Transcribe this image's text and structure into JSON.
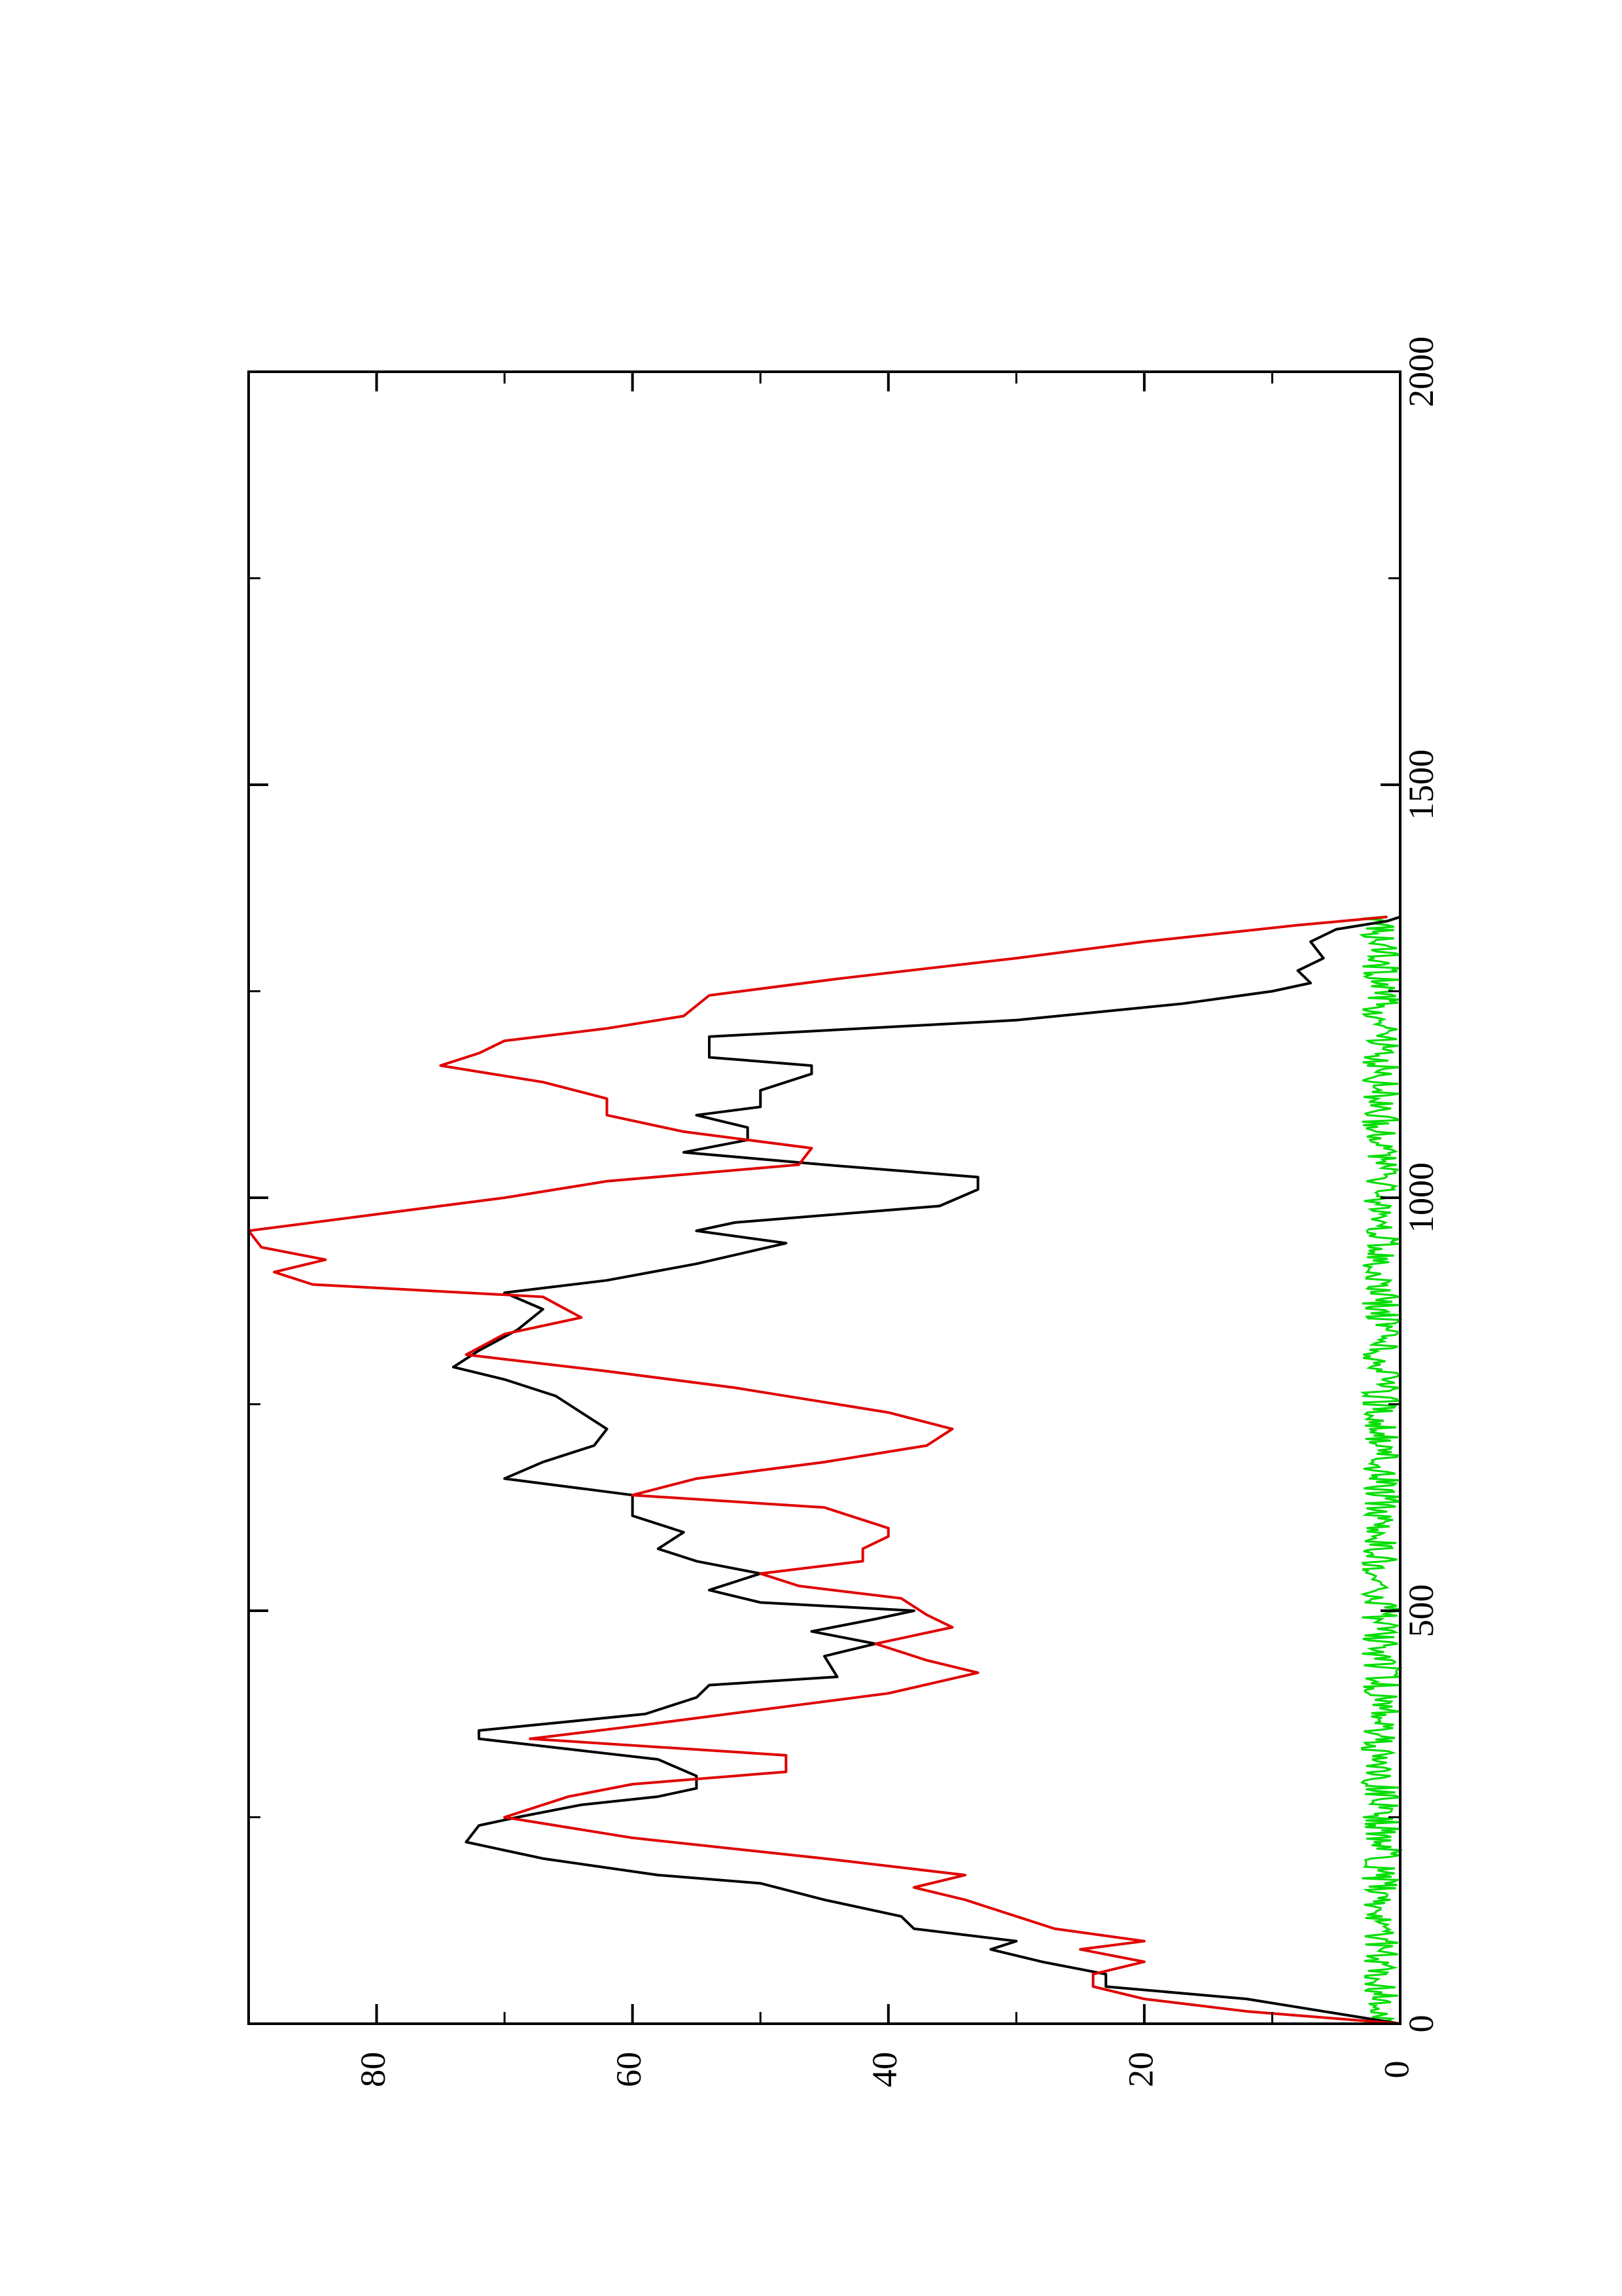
{
  "colors": {
    "background": "#ffffff",
    "frame": "#000000",
    "series_black": "#000000",
    "series_red": "#e00000",
    "series_green": "#00dd00"
  },
  "chart_data": {
    "type": "line",
    "orientation": "rotated-90-ccw",
    "title": "",
    "xlabel": "",
    "ylabel": "",
    "xlim": [
      0,
      2000
    ],
    "ylim": [
      0,
      90
    ],
    "x_ticks": [
      0,
      500,
      1000,
      1500,
      2000
    ],
    "y_ticks": [
      0,
      20,
      40,
      60,
      80
    ],
    "grid": false,
    "legend": "none",
    "series": [
      {
        "color": "#000000",
        "x": [
          0,
          15,
          30,
          45,
          60,
          75,
          90,
          100,
          115,
          130,
          150,
          170,
          180,
          200,
          220,
          240,
          250,
          265,
          275,
          285,
          300,
          320,
          345,
          355,
          375,
          395,
          410,
          420,
          445,
          460,
          475,
          490,
          500,
          510,
          525,
          545,
          560,
          575,
          595,
          615,
          640,
          660,
          680,
          700,
          720,
          740,
          760,
          780,
          795,
          815,
          840,
          865,
          885,
          900,
          920,
          945,
          960,
          970,
          990,
          1010,
          1025,
          1040,
          1055,
          1070,
          1085,
          1100,
          1110,
          1130,
          1150,
          1160,
          1170,
          1195,
          1215,
          1235,
          1250,
          1260,
          1275,
          1290,
          1310,
          1325,
          1335,
          1340
        ],
        "y": [
          0,
          6,
          12,
          23,
          23,
          28,
          32,
          30,
          38,
          39,
          45,
          50,
          58,
          67,
          73,
          72,
          69,
          64,
          58,
          55,
          55,
          58,
          72,
          72,
          59,
          55,
          54,
          44,
          45,
          41,
          46,
          41,
          38,
          50,
          54,
          50,
          55,
          58,
          56,
          60,
          60,
          70,
          67,
          63,
          62,
          64,
          66,
          70,
          74,
          72,
          69,
          67,
          70,
          62,
          55,
          48,
          55,
          52,
          36,
          33,
          33,
          45,
          56,
          51,
          51,
          55,
          50,
          50,
          46,
          46,
          54,
          54,
          30,
          17,
          10,
          7,
          8,
          6,
          7,
          5,
          1,
          0
        ]
      },
      {
        "color": "#e00000",
        "x": [
          0,
          15,
          30,
          45,
          60,
          75,
          90,
          100,
          115,
          130,
          150,
          165,
          180,
          200,
          225,
          250,
          275,
          290,
          305,
          325,
          345,
          360,
          380,
          400,
          425,
          440,
          460,
          480,
          495,
          515,
          530,
          545,
          560,
          575,
          590,
          600,
          610,
          625,
          640,
          660,
          680,
          700,
          720,
          740,
          770,
          790,
          810,
          835,
          855,
          880,
          895,
          910,
          925,
          940,
          960,
          980,
          1000,
          1020,
          1040,
          1060,
          1080,
          1100,
          1120,
          1140,
          1160,
          1175,
          1190,
          1205,
          1220,
          1245,
          1265,
          1290,
          1310,
          1330,
          1340
        ],
        "y": [
          0,
          12,
          20,
          24,
          24,
          20,
          25,
          20,
          27,
          30,
          34,
          38,
          34,
          45,
          60,
          70,
          65,
          60,
          48,
          48,
          68,
          60,
          50,
          40,
          33,
          37,
          41,
          35,
          37,
          39,
          47,
          50,
          42,
          42,
          40,
          40,
          42,
          45,
          60,
          55,
          45,
          37,
          35,
          40,
          52,
          62,
          73,
          70,
          64,
          67,
          85,
          88,
          84,
          89,
          90,
          80,
          70,
          62,
          47,
          46,
          56,
          62,
          62,
          67,
          75,
          72,
          70,
          62,
          56,
          54,
          44,
          30,
          20,
          8,
          1
        ]
      },
      {
        "color": "#00dd00",
        "noise": true,
        "x_range": [
          0,
          1340
        ],
        "y_range": [
          0,
          3
        ]
      }
    ]
  }
}
